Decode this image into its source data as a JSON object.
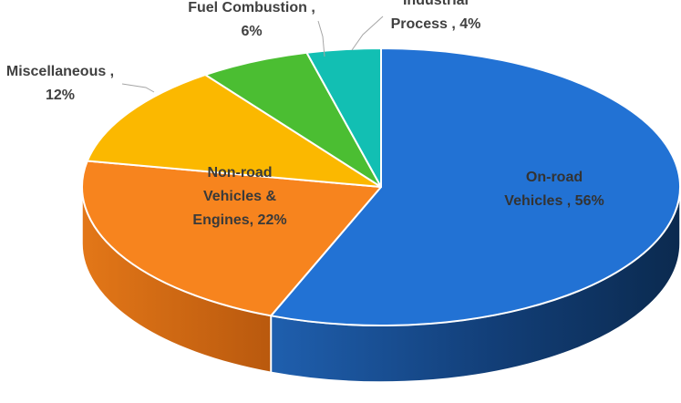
{
  "chart_data": {
    "type": "pie",
    "style": "3d",
    "title": "",
    "slices": [
      {
        "label": "On-road Vehicles",
        "value": 56,
        "color": "#2272D4",
        "side_dark": "#0B2A4F",
        "side_light": "#1F5FAE",
        "text_lines": [
          "On-road",
          "Vehicles , 56%"
        ]
      },
      {
        "label": "Non-road Vehicles & Engines",
        "value": 22,
        "color": "#F7841E",
        "side_dark": "#A04E0C",
        "side_light": "#E37718",
        "text_lines": [
          "Non-road",
          "Vehicles &",
          "Engines, 22%"
        ]
      },
      {
        "label": "Miscellaneous",
        "value": 12,
        "color": "#FBB800",
        "side_dark": "#B58400",
        "side_light": "#E0A300",
        "text_lines": [
          "Miscellaneous ,",
          "12%"
        ]
      },
      {
        "label": "Fuel Combustion",
        "value": 6,
        "color": "#4BBE32",
        "side_dark": "#2F7E1F",
        "side_light": "#3FA82A",
        "text_lines": [
          "Fuel Combustion ,",
          "6%"
        ]
      },
      {
        "label": "Industrial Process",
        "value": 4,
        "color": "#12BFB3",
        "side_dark": "#0B7F77",
        "side_light": "#10A89D",
        "text_lines": [
          "Industrial",
          "Process , 4%"
        ]
      }
    ]
  }
}
